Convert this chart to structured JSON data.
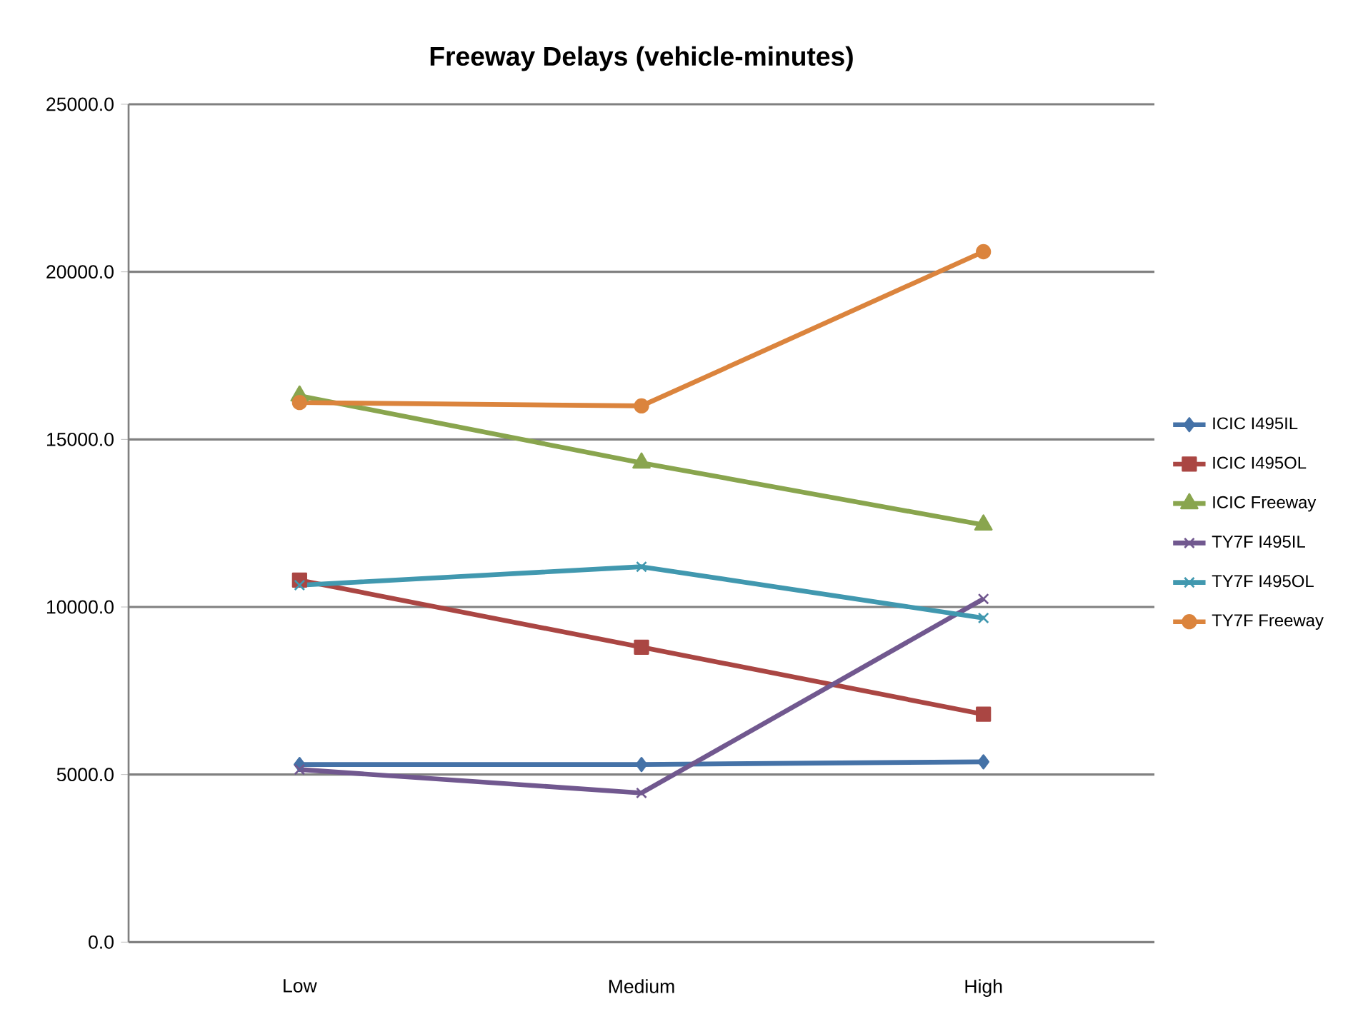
{
  "chart_data": {
    "type": "line",
    "title": "Freeway Delays (vehicle-minutes)",
    "categories": [
      "Low",
      "Medium",
      "High"
    ],
    "series": [
      {
        "name": "ICIC I495IL",
        "color": "#4572a7",
        "marker": "diamond",
        "values": [
          5300,
          5300,
          5380
        ]
      },
      {
        "name": "ICIC I495OL",
        "color": "#aa4643",
        "marker": "square",
        "values": [
          10800,
          8800,
          6800
        ]
      },
      {
        "name": "ICIC Freeway",
        "color": "#89a54e",
        "marker": "triangle",
        "values": [
          16300,
          14300,
          12450
        ]
      },
      {
        "name": "TY7F I495IL",
        "color": "#71588f",
        "marker": "cross",
        "values": [
          5150,
          4450,
          10240
        ]
      },
      {
        "name": "TY7F I495OL",
        "color": "#4198af",
        "marker": "cross",
        "values": [
          10650,
          11200,
          9670
        ]
      },
      {
        "name": "TY7F Freeway",
        "color": "#db843d",
        "marker": "circle",
        "values": [
          16100,
          16000,
          20600
        ]
      }
    ],
    "ylim": [
      0,
      25000
    ],
    "yticks": [
      {
        "value": 0,
        "label": "0.0"
      },
      {
        "value": 5000,
        "label": "5000.0"
      },
      {
        "value": 10000,
        "label": "10000.0"
      },
      {
        "value": 15000,
        "label": "15000.0"
      },
      {
        "value": 20000,
        "label": "20000.0"
      },
      {
        "value": 25000,
        "label": "25000.0"
      }
    ],
    "grid": "y",
    "legend": "right",
    "line_style": "solid"
  }
}
